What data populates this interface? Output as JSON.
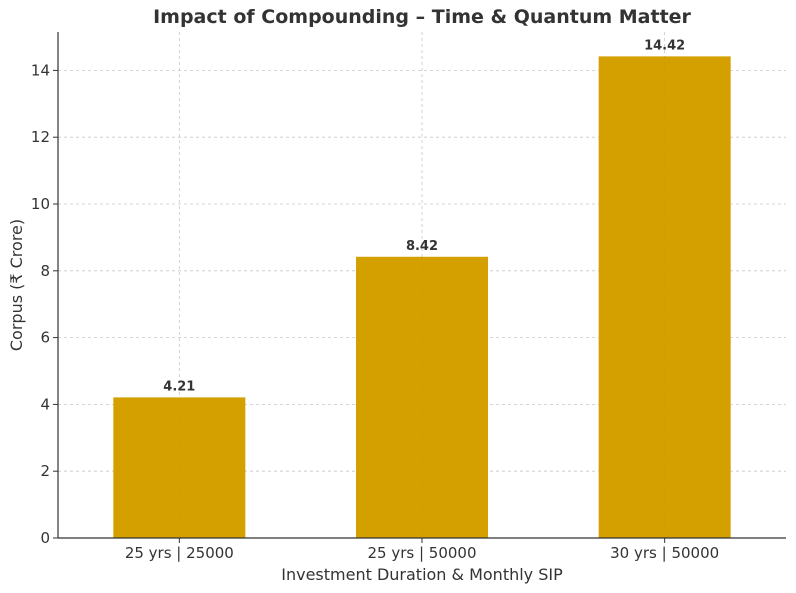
{
  "chart_data": {
    "type": "bar",
    "title": "Impact of Compounding – Time & Quantum Matter",
    "xlabel": "Investment Duration & Monthly SIP",
    "ylabel": "Corpus (₹ Crore)",
    "categories": [
      "25 yrs | 25000",
      "25 yrs | 50000",
      "30 yrs | 50000"
    ],
    "values": [
      4.21,
      8.42,
      14.42
    ],
    "data_labels": [
      "4.21",
      "8.42",
      "14.42"
    ],
    "ylim": [
      0,
      15.15
    ],
    "yticks": [
      0,
      2,
      4,
      6,
      8,
      10,
      12,
      14
    ],
    "grid": true,
    "bar_color": "#D4A000"
  }
}
